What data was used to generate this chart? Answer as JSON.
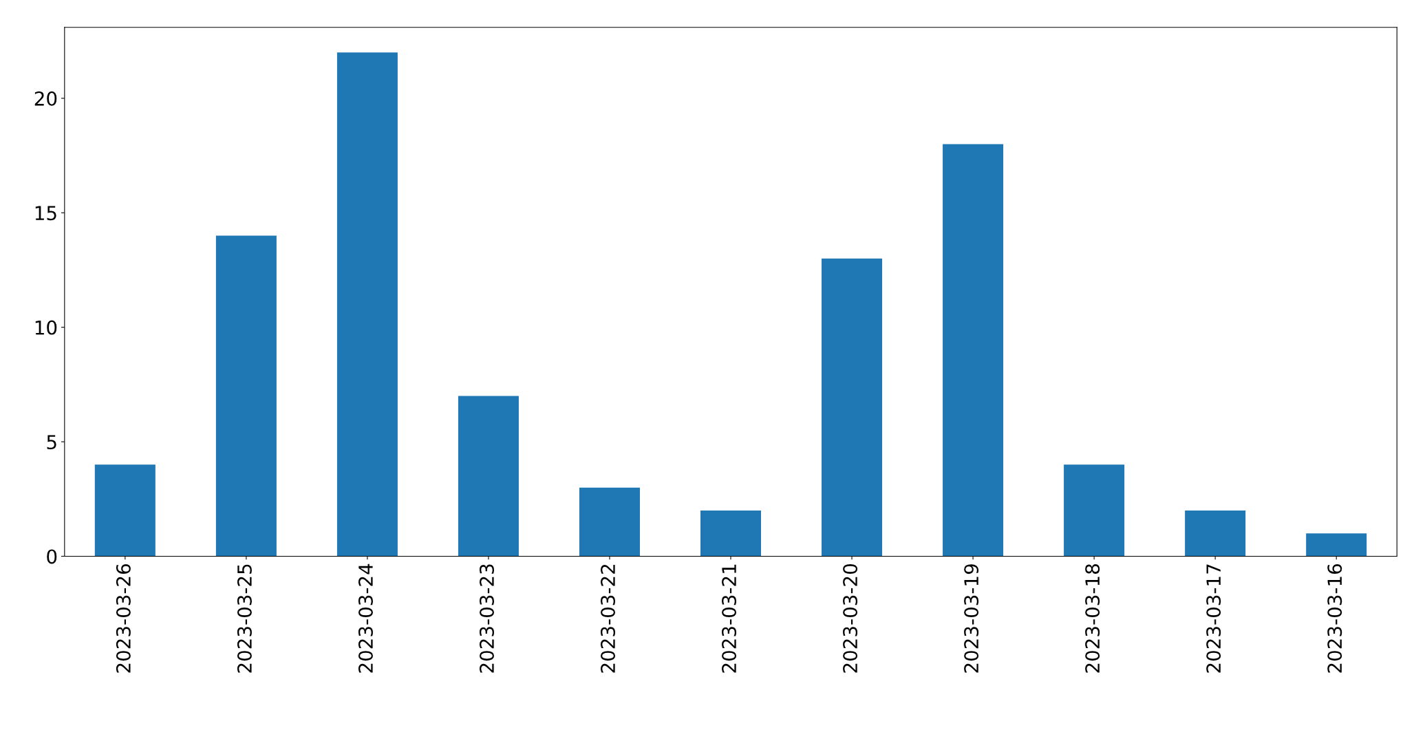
{
  "chart_data": {
    "type": "bar",
    "categories": [
      "2023-03-26",
      "2023-03-25",
      "2023-03-24",
      "2023-03-23",
      "2023-03-22",
      "2023-03-21",
      "2023-03-20",
      "2023-03-19",
      "2023-03-18",
      "2023-03-17",
      "2023-03-16"
    ],
    "values": [
      4,
      14,
      22,
      7,
      3,
      2,
      13,
      18,
      4,
      2,
      1
    ],
    "color": "#1f77b4",
    "ylim": [
      0,
      23.1
    ],
    "yticks": [
      0,
      5,
      10,
      15,
      20
    ],
    "grid": false,
    "legend": false
  }
}
